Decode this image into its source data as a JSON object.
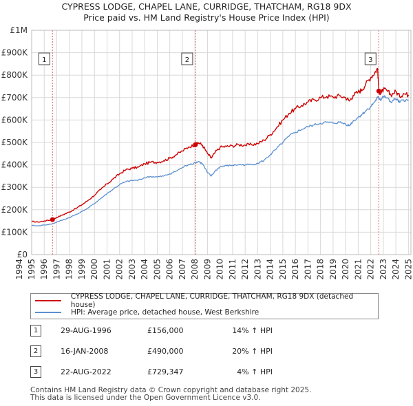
{
  "chart_data": {
    "type": "line",
    "title": "CYPRESS LODGE, CHAPEL LANE, CURRIDGE, THATCHAM, RG18 9DX",
    "subtitle": "Price paid vs. HM Land Registry's House Price Index (HPI)",
    "xlim": [
      1995,
      2025.2
    ],
    "ylim": [
      0,
      1000000
    ],
    "x_ticks": [
      "1994",
      "1995",
      "1996",
      "1997",
      "1998",
      "1999",
      "2000",
      "2001",
      "2002",
      "2003",
      "2004",
      "2005",
      "2006",
      "2007",
      "2008",
      "2009",
      "2010",
      "2011",
      "2012",
      "2013",
      "2014",
      "2015",
      "2016",
      "2017",
      "2018",
      "2019",
      "2020",
      "2021",
      "2022",
      "2023",
      "2024",
      "2025"
    ],
    "y_ticks": [
      {
        "value": 0,
        "label": "£0"
      },
      {
        "value": 100000,
        "label": "£100K"
      },
      {
        "value": 200000,
        "label": "£200K"
      },
      {
        "value": 300000,
        "label": "£300K"
      },
      {
        "value": 400000,
        "label": "£400K"
      },
      {
        "value": 500000,
        "label": "£500K"
      },
      {
        "value": 600000,
        "label": "£600K"
      },
      {
        "value": 700000,
        "label": "£700K"
      },
      {
        "value": 800000,
        "label": "£800K"
      },
      {
        "value": 900000,
        "label": "£900K"
      },
      {
        "value": 1000000,
        "label": "£1M"
      }
    ],
    "series": [
      {
        "name": "CYPRESS LODGE, CHAPEL LANE, CURRIDGE, THATCHAM, RG18 9DX (detached house)",
        "color": "#cc0000",
        "x": [
          1995.0,
          1995.5,
          1996.0,
          1996.66,
          1997.0,
          1997.5,
          1998.0,
          1998.5,
          1999.0,
          1999.5,
          2000.0,
          2000.5,
          2001.0,
          2001.5,
          2002.0,
          2002.5,
          2003.0,
          2003.5,
          2004.0,
          2004.5,
          2005.0,
          2005.5,
          2006.0,
          2006.5,
          2007.0,
          2007.5,
          2008.04,
          2008.3,
          2008.6,
          2009.0,
          2009.3,
          2009.6,
          2010.0,
          2010.5,
          2011.0,
          2011.5,
          2012.0,
          2012.5,
          2013.0,
          2013.5,
          2014.0,
          2014.5,
          2015.0,
          2015.5,
          2016.0,
          2016.5,
          2017.0,
          2017.5,
          2018.0,
          2018.5,
          2019.0,
          2019.5,
          2020.0,
          2020.3,
          2020.6,
          2021.0,
          2021.3,
          2021.6,
          2022.0,
          2022.3,
          2022.55,
          2022.64,
          2022.8,
          2023.0,
          2023.3,
          2023.6,
          2024.0,
          2024.3,
          2024.6,
          2025.0
        ],
        "values": [
          148000,
          145000,
          150000,
          156000,
          166000,
          178000,
          190000,
          205000,
          222000,
          242000,
          265000,
          290000,
          315000,
          338000,
          360000,
          378000,
          385000,
          390000,
          405000,
          412000,
          412000,
          418000,
          430000,
          445000,
          462000,
          480000,
          490000,
          498000,
          488000,
          450000,
          430000,
          455000,
          478000,
          482000,
          485000,
          490000,
          488000,
          490000,
          495000,
          510000,
          535000,
          565000,
          600000,
          630000,
          650000,
          665000,
          680000,
          690000,
          700000,
          705000,
          702000,
          708000,
          700000,
          685000,
          710000,
          725000,
          735000,
          760000,
          790000,
          810000,
          830000,
          729347,
          720000,
          735000,
          730000,
          712000,
          728000,
          705000,
          718000,
          712000
        ]
      },
      {
        "name": "HPI: Average price, detached house, West Berkshire",
        "color": "#5b8fd0",
        "x": [
          1995.0,
          1995.5,
          1996.0,
          1996.66,
          1997.0,
          1997.5,
          1998.0,
          1998.5,
          1999.0,
          1999.5,
          2000.0,
          2000.5,
          2001.0,
          2001.5,
          2002.0,
          2002.5,
          2003.0,
          2003.5,
          2004.0,
          2004.5,
          2005.0,
          2005.5,
          2006.0,
          2006.5,
          2007.0,
          2007.5,
          2008.04,
          2008.3,
          2008.6,
          2009.0,
          2009.3,
          2009.6,
          2010.0,
          2010.5,
          2011.0,
          2011.5,
          2012.0,
          2012.5,
          2013.0,
          2013.5,
          2014.0,
          2014.5,
          2015.0,
          2015.5,
          2016.0,
          2016.5,
          2017.0,
          2017.5,
          2018.0,
          2018.5,
          2019.0,
          2019.5,
          2020.0,
          2020.3,
          2020.6,
          2021.0,
          2021.3,
          2021.6,
          2022.0,
          2022.3,
          2022.55,
          2022.64,
          2022.8,
          2023.0,
          2023.3,
          2023.6,
          2024.0,
          2024.3,
          2024.6,
          2025.0
        ],
        "values": [
          130000,
          128000,
          132000,
          137000,
          145000,
          155000,
          165000,
          178000,
          192000,
          208000,
          228000,
          250000,
          272000,
          292000,
          312000,
          325000,
          330000,
          332000,
          343000,
          348000,
          346000,
          350000,
          360000,
          372000,
          388000,
          402000,
          410000,
          415000,
          405000,
          365000,
          350000,
          372000,
          392000,
          396000,
          398000,
          401000,
          400000,
          402000,
          407000,
          420000,
          445000,
          472000,
          500000,
          528000,
          545000,
          558000,
          570000,
          578000,
          585000,
          590000,
          586000,
          590000,
          582000,
          575000,
          595000,
          612000,
          625000,
          640000,
          660000,
          680000,
          700000,
          700000,
          690000,
          705000,
          698000,
          680000,
          695000,
          678000,
          690000,
          685000
        ]
      }
    ],
    "annotations": [
      {
        "label": "1",
        "x": 1996.66,
        "value": 156000
      },
      {
        "label": "2",
        "x": 2008.04,
        "value": 490000
      },
      {
        "label": "3",
        "x": 2022.64,
        "value": 729347
      }
    ]
  },
  "legend": {
    "property_label": "CYPRESS LODGE, CHAPEL LANE, CURRIDGE, THATCHAM, RG18 9DX (detached house)",
    "hpi_label": "HPI: Average price, detached house, West Berkshire"
  },
  "transactions": [
    {
      "num": "1",
      "date": "29-AUG-1996",
      "price": "£156,000",
      "hpi": "14% ↑ HPI"
    },
    {
      "num": "2",
      "date": "16-JAN-2008",
      "price": "£490,000",
      "hpi": "20% ↑ HPI"
    },
    {
      "num": "3",
      "date": "22-AUG-2022",
      "price": "£729,347",
      "hpi": "4% ↑ HPI"
    }
  ],
  "footer": {
    "line1": "Contains HM Land Registry data © Crown copyright and database right 2025.",
    "line2": "This data is licensed under the Open Government Licence v3.0."
  },
  "colors": {
    "property": "#cc0000",
    "hpi": "#5b8fd0",
    "grid": "#d8d8d8",
    "vline": "#e06666"
  }
}
